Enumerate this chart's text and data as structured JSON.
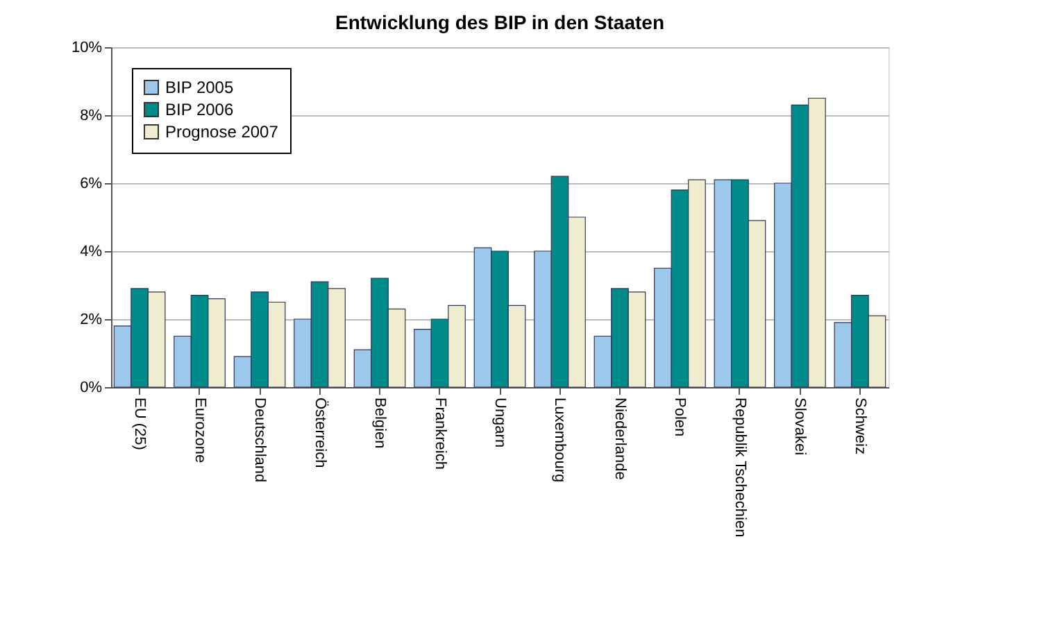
{
  "chart_data": {
    "type": "bar",
    "title": "Entwicklung des BIP in den Staaten",
    "categories": [
      "EU (25)",
      "Eurozone",
      "Deutschland",
      "Österreich",
      "Belgien",
      "Frankreich",
      "Ungarn",
      "Luxembourg",
      "Niederlande",
      "Polen",
      "Republik Tschechien",
      "Slovakei",
      "Schweiz"
    ],
    "series": [
      {
        "name": "BIP 2005",
        "color": "#9cc8ec",
        "values": [
          1.8,
          1.5,
          0.9,
          2.0,
          1.1,
          1.7,
          4.1,
          4.0,
          1.5,
          3.5,
          6.1,
          6.0,
          1.9
        ]
      },
      {
        "name": "BIP 2006",
        "color": "#008b8b",
        "values": [
          2.9,
          2.7,
          2.8,
          3.1,
          3.2,
          2.0,
          4.0,
          6.2,
          2.9,
          5.8,
          6.1,
          8.3,
          2.7
        ]
      },
      {
        "name": "Prognose 2007",
        "color": "#f0ecd0",
        "values": [
          2.8,
          2.6,
          2.5,
          2.9,
          2.3,
          2.4,
          2.4,
          5.0,
          2.8,
          6.1,
          4.9,
          8.5,
          2.1
        ]
      }
    ],
    "ylim": [
      0,
      10
    ],
    "yticks": [
      {
        "value": 0,
        "label": "0%"
      },
      {
        "value": 2,
        "label": "2%"
      },
      {
        "value": 4,
        "label": "4%"
      },
      {
        "value": 6,
        "label": "6%"
      },
      {
        "value": 8,
        "label": "8%"
      },
      {
        "value": 10,
        "label": "10%"
      }
    ],
    "grid": "y",
    "legend": "top left"
  }
}
